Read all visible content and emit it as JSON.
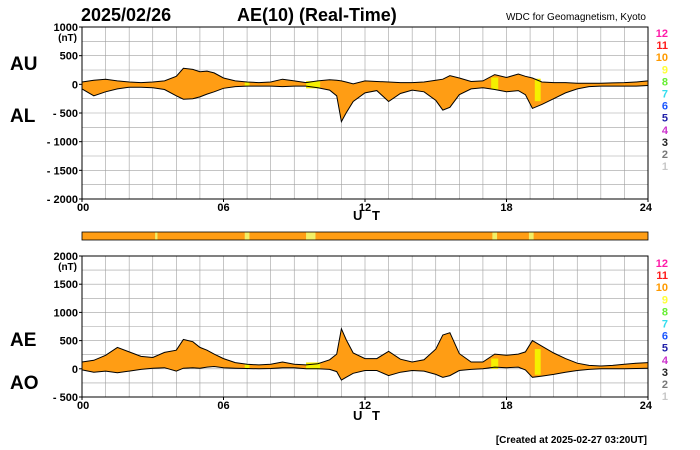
{
  "header": {
    "date": "2025/02/26",
    "title": "AE(10) (Real-Time)",
    "source": "WDC for Geomagnetism, Kyoto"
  },
  "footer": {
    "created": "[Created at 2025-02-27 03:20UT]"
  },
  "colors": {
    "fill": "#ff9d14",
    "grid": "#a0a0a0",
    "line": "#000000",
    "highlight_yellow": "#f5f000",
    "highlight_lightyellow": "#f2ef66"
  },
  "legend_levels": [
    {
      "label": "12",
      "color": "#ff1aa8"
    },
    {
      "label": "11",
      "color": "#ff1a1a"
    },
    {
      "label": "10",
      "color": "#ff9a00"
    },
    {
      "label": "9",
      "color": "#ffff33"
    },
    {
      "label": "8",
      "color": "#66ee33"
    },
    {
      "label": "7",
      "color": "#33ddee"
    },
    {
      "label": "6",
      "color": "#1a55ff"
    },
    {
      "label": "5",
      "color": "#2222aa"
    },
    {
      "label": "4",
      "color": "#cc33cc"
    },
    {
      "label": "3",
      "color": "#222222"
    },
    {
      "label": "2",
      "color": "#777777"
    },
    {
      "label": "1",
      "color": "#c8c8c8"
    }
  ],
  "chart_data": [
    {
      "type": "area",
      "upper_series_label": "AU",
      "lower_series_label": "AL",
      "unit_label": "(nT)",
      "xlabel": "U T",
      "xlim": [
        0,
        24
      ],
      "ylim": [
        -2000,
        1000
      ],
      "yticks": [
        1000,
        500,
        0,
        -500,
        -1000,
        -1500,
        -2000
      ],
      "ytick_labels": [
        "1000",
        "500",
        "0",
        "- 500",
        "- 1000",
        "- 1500",
        "- 2000"
      ],
      "xticks": [
        0,
        6,
        12,
        18,
        24
      ],
      "xtick_labels": [
        "00",
        "06",
        "12",
        "18",
        "24"
      ],
      "grid": true,
      "x": [
        0,
        0.5,
        1,
        1.5,
        2,
        2.5,
        3,
        3.5,
        4,
        4.3,
        4.7,
        5,
        5.3,
        5.6,
        6,
        6.5,
        7,
        7.5,
        8,
        8.5,
        9,
        9.5,
        10,
        10.5,
        10.8,
        11,
        11.2,
        11.5,
        12,
        12.5,
        13,
        13.5,
        14,
        14.5,
        15,
        15.3,
        15.6,
        16,
        16.5,
        17,
        17.5,
        18,
        18.5,
        18.8,
        19.1,
        19.5,
        20,
        20.5,
        21,
        21.5,
        22,
        22.5,
        23,
        23.5,
        24
      ],
      "upper_values": [
        40,
        70,
        90,
        60,
        40,
        30,
        40,
        60,
        140,
        280,
        260,
        220,
        230,
        200,
        110,
        60,
        40,
        30,
        40,
        90,
        60,
        30,
        60,
        80,
        70,
        60,
        40,
        10,
        60,
        50,
        40,
        30,
        30,
        40,
        70,
        90,
        150,
        110,
        50,
        60,
        170,
        120,
        180,
        140,
        110,
        40,
        30,
        30,
        20,
        20,
        20,
        25,
        30,
        40,
        60
      ],
      "lower_values": [
        -80,
        -200,
        -130,
        -80,
        -50,
        -50,
        -60,
        -90,
        -200,
        -260,
        -250,
        -220,
        -170,
        -130,
        -70,
        -40,
        -30,
        -30,
        -30,
        -40,
        -30,
        -30,
        -60,
        -100,
        -200,
        -650,
        -500,
        -300,
        -150,
        -110,
        -300,
        -160,
        -100,
        -130,
        -280,
        -450,
        -400,
        -180,
        -80,
        -60,
        -90,
        -130,
        -110,
        -180,
        -420,
        -350,
        -250,
        -150,
        -80,
        -40,
        -30,
        -30,
        -30,
        -30,
        -20
      ],
      "highlight_hours": [
        [
          6.9,
          7.1
        ],
        [
          9.5,
          10.1
        ],
        [
          17.35,
          17.65
        ],
        [
          19.2,
          19.45
        ]
      ]
    },
    {
      "type": "area",
      "upper_series_label": "AE",
      "lower_series_label": "AO",
      "unit_label": "(nT)",
      "xlabel": "U T",
      "xlim": [
        0,
        24
      ],
      "ylim": [
        -500,
        2000
      ],
      "yticks": [
        2000,
        1500,
        1000,
        500,
        0,
        -500
      ],
      "ytick_labels": [
        "2000",
        "1500",
        "1000",
        "500",
        "0",
        "- 500"
      ],
      "xticks": [
        0,
        6,
        12,
        18,
        24
      ],
      "xtick_labels": [
        "00",
        "06",
        "12",
        "18",
        "24"
      ],
      "grid": true,
      "x": [
        0,
        0.5,
        1,
        1.5,
        2,
        2.5,
        3,
        3.5,
        4,
        4.3,
        4.7,
        5,
        5.3,
        5.6,
        6,
        6.5,
        7,
        7.5,
        8,
        8.5,
        9,
        9.5,
        10,
        10.5,
        10.8,
        11,
        11.2,
        11.5,
        12,
        12.5,
        13,
        13.5,
        14,
        14.5,
        15,
        15.3,
        15.6,
        16,
        16.5,
        17,
        17.5,
        18,
        18.5,
        18.8,
        19.1,
        19.5,
        20,
        20.5,
        21,
        21.5,
        22,
        22.5,
        23,
        23.5,
        24
      ],
      "upper_values": [
        120,
        150,
        240,
        380,
        300,
        220,
        200,
        290,
        330,
        520,
        480,
        380,
        330,
        260,
        180,
        110,
        80,
        70,
        80,
        120,
        80,
        70,
        90,
        160,
        260,
        710,
        520,
        280,
        180,
        180,
        310,
        170,
        120,
        160,
        350,
        600,
        640,
        270,
        120,
        120,
        260,
        240,
        260,
        300,
        500,
        400,
        280,
        180,
        100,
        60,
        50,
        60,
        80,
        100,
        110
      ],
      "lower_values": [
        -20,
        -60,
        -40,
        -70,
        -40,
        -10,
        10,
        20,
        -40,
        10,
        20,
        10,
        30,
        40,
        20,
        10,
        5,
        0,
        5,
        20,
        20,
        0,
        0,
        -10,
        -50,
        -200,
        -150,
        -80,
        -30,
        -30,
        -120,
        -60,
        -30,
        -40,
        -100,
        -150,
        -120,
        -30,
        -10,
        0,
        30,
        20,
        30,
        -20,
        -150,
        -130,
        -100,
        -60,
        -30,
        -10,
        0,
        0,
        0,
        5,
        10
      ],
      "highlight_hours": [
        [
          6.9,
          7.1
        ],
        [
          9.5,
          10.1
        ],
        [
          17.35,
          17.65
        ],
        [
          19.2,
          19.45
        ]
      ]
    }
  ],
  "status_bar": {
    "color": "#ff9d14",
    "highlight_hours": [
      [
        3.1,
        3.2
      ],
      [
        6.9,
        7.1
      ],
      [
        9.5,
        9.9
      ],
      [
        17.4,
        17.6
      ],
      [
        18.95,
        19.15
      ]
    ]
  }
}
